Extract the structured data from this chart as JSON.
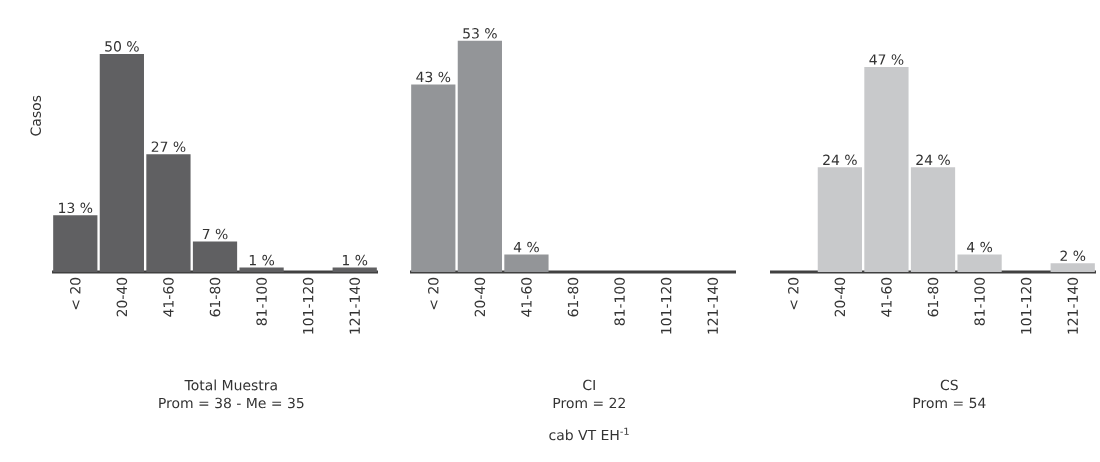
{
  "chart_data": [
    {
      "type": "bar",
      "title": "Total Muestra",
      "subtitle": "Prom = 38 - Me = 35",
      "ylabel": "Casos",
      "categories": [
        "< 20",
        "20-40",
        "41-60",
        "61-80",
        "81-100",
        "101-120",
        "121-140"
      ],
      "values": [
        13,
        50,
        27,
        7,
        1,
        0,
        1
      ],
      "value_labels": [
        "13 %",
        "50 %",
        "27 %",
        "7 %",
        "1 %",
        null,
        "1 %"
      ],
      "color": "#606062"
    },
    {
      "type": "bar",
      "title": "CI",
      "subtitle": "Prom = 22",
      "xlabel": "cab VT EH$^{-1}$",
      "categories": [
        "< 20",
        "20-40",
        "41-60",
        "61-80",
        "81-100",
        "101-120",
        "121-140"
      ],
      "values": [
        43,
        53,
        4,
        0,
        0,
        0,
        0
      ],
      "value_labels": [
        "43 %",
        "53 %",
        "4 %",
        null,
        null,
        null,
        null
      ],
      "color": "#939598"
    },
    {
      "type": "bar",
      "title": "CS",
      "subtitle": "Prom = 54",
      "categories": [
        "< 20",
        "20-40",
        "41-60",
        "61-80",
        "81-100",
        "101-120",
        "121-140"
      ],
      "values": [
        0,
        24,
        47,
        24,
        4,
        0,
        2
      ],
      "value_labels": [
        null,
        "24 %",
        "47 %",
        "24 %",
        "4 %",
        null,
        "2 %"
      ],
      "color": "#c8c9cb"
    }
  ]
}
